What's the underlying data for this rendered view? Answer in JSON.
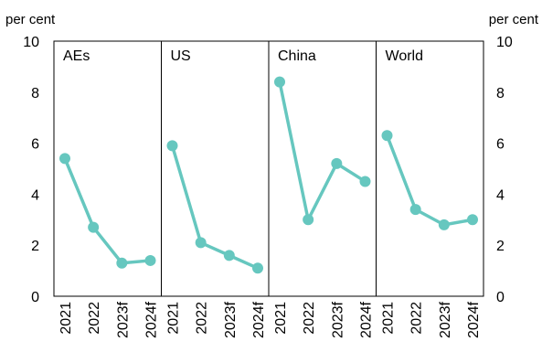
{
  "chart_data": {
    "type": "line",
    "y_unit_left": "per cent",
    "y_unit_right": "per cent",
    "ylim": [
      0,
      10
    ],
    "yticks": [
      0,
      2,
      4,
      6,
      8,
      10
    ],
    "grid": false,
    "color": "#66c7bf",
    "panels": [
      {
        "name": "AEs",
        "categories": [
          "2021",
          "2022",
          "2023f",
          "2024f"
        ],
        "values": [
          5.4,
          2.7,
          1.3,
          1.4
        ]
      },
      {
        "name": "US",
        "categories": [
          "2021",
          "2022",
          "2023f",
          "2024f"
        ],
        "values": [
          5.9,
          2.1,
          1.6,
          1.1
        ]
      },
      {
        "name": "China",
        "categories": [
          "2021",
          "2022",
          "2023f",
          "2024f"
        ],
        "values": [
          8.4,
          3.0,
          5.2,
          4.5
        ]
      },
      {
        "name": "World",
        "categories": [
          "2021",
          "2022",
          "2023f",
          "2024f"
        ],
        "values": [
          6.3,
          3.4,
          2.8,
          3.0
        ]
      }
    ]
  }
}
